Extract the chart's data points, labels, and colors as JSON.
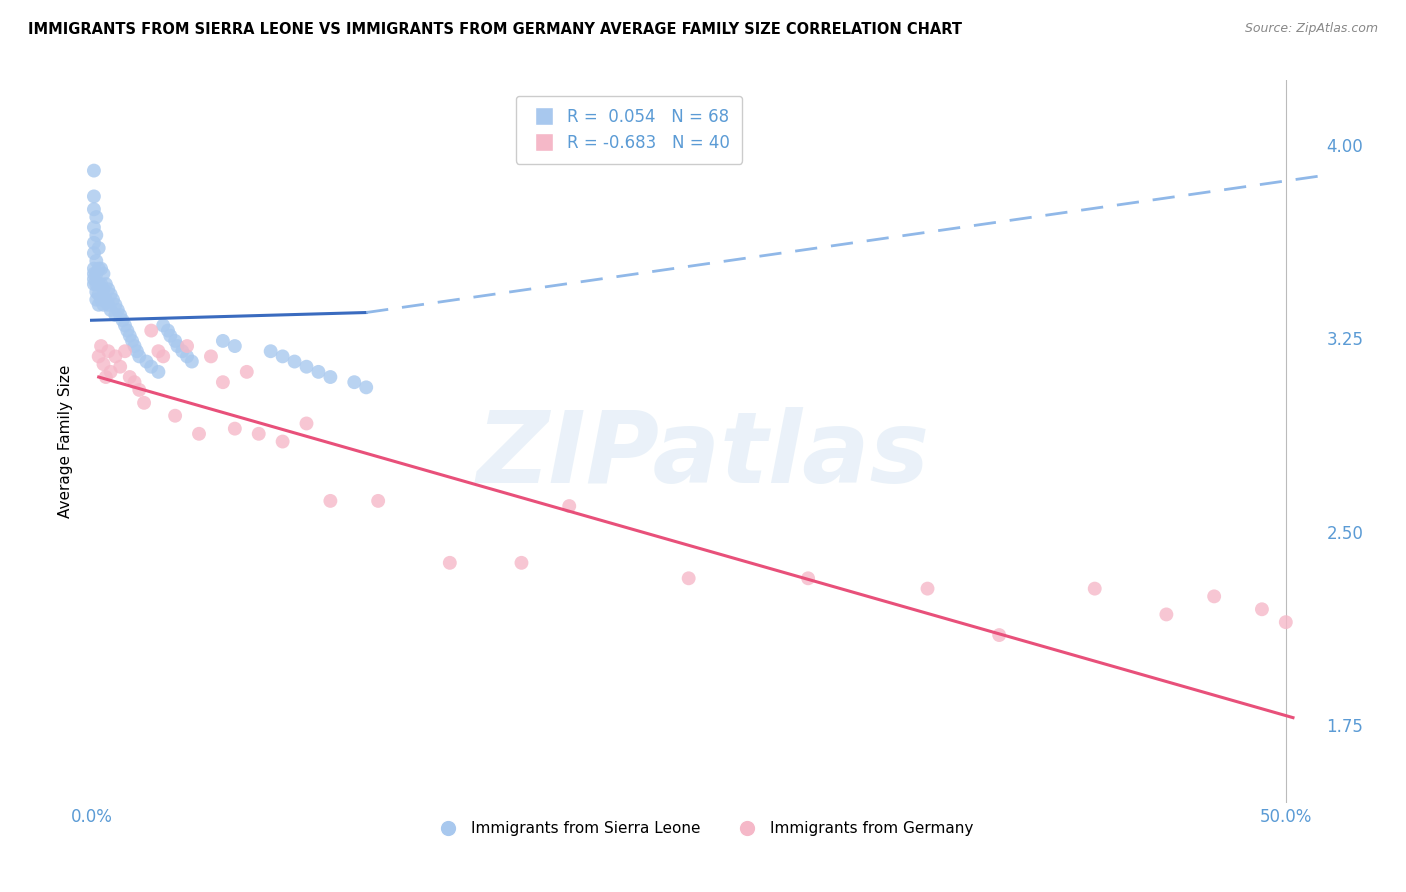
{
  "title": "IMMIGRANTS FROM SIERRA LEONE VS IMMIGRANTS FROM GERMANY AVERAGE FAMILY SIZE CORRELATION CHART",
  "source": "Source: ZipAtlas.com",
  "ylabel": "Average Family Size",
  "yticks": [
    1.75,
    2.5,
    3.25,
    4.0
  ],
  "ymin": 1.45,
  "ymax": 4.25,
  "xmin": -0.003,
  "xmax": 0.515,
  "legend_r_blue": "R =  0.054",
  "legend_n_blue": "N = 68",
  "legend_r_pink": "R = -0.683",
  "legend_n_pink": "N = 40",
  "blue_color": "#A8C8EE",
  "pink_color": "#F5B8C8",
  "trend_blue_solid": "#3A6BBF",
  "trend_blue_dashed": "#90B8E8",
  "trend_pink": "#E8507A",
  "background": "#FFFFFF",
  "grid_color": "#CCCCCC",
  "axis_color": "#5B9BD5",
  "title_fontsize": 10.5,
  "source_fontsize": 9,
  "blue_dots_x": [
    0.001,
    0.001,
    0.001,
    0.001,
    0.001,
    0.001,
    0.001,
    0.001,
    0.001,
    0.001,
    0.002,
    0.002,
    0.002,
    0.002,
    0.002,
    0.002,
    0.002,
    0.003,
    0.003,
    0.003,
    0.003,
    0.003,
    0.004,
    0.004,
    0.004,
    0.005,
    0.005,
    0.005,
    0.006,
    0.006,
    0.007,
    0.007,
    0.008,
    0.008,
    0.009,
    0.01,
    0.01,
    0.011,
    0.012,
    0.013,
    0.014,
    0.015,
    0.016,
    0.017,
    0.018,
    0.019,
    0.02,
    0.023,
    0.025,
    0.028,
    0.03,
    0.032,
    0.033,
    0.035,
    0.036,
    0.038,
    0.04,
    0.042,
    0.055,
    0.06,
    0.075,
    0.08,
    0.085,
    0.09,
    0.095,
    0.1,
    0.11,
    0.115
  ],
  "blue_dots_y": [
    3.9,
    3.8,
    3.75,
    3.68,
    3.62,
    3.58,
    3.52,
    3.5,
    3.48,
    3.46,
    3.72,
    3.65,
    3.55,
    3.5,
    3.46,
    3.43,
    3.4,
    3.6,
    3.52,
    3.46,
    3.42,
    3.38,
    3.52,
    3.46,
    3.4,
    3.5,
    3.44,
    3.38,
    3.46,
    3.4,
    3.44,
    3.38,
    3.42,
    3.36,
    3.4,
    3.38,
    3.34,
    3.36,
    3.34,
    3.32,
    3.3,
    3.28,
    3.26,
    3.24,
    3.22,
    3.2,
    3.18,
    3.16,
    3.14,
    3.12,
    3.3,
    3.28,
    3.26,
    3.24,
    3.22,
    3.2,
    3.18,
    3.16,
    3.24,
    3.22,
    3.2,
    3.18,
    3.16,
    3.14,
    3.12,
    3.1,
    3.08,
    3.06
  ],
  "pink_dots_x": [
    0.003,
    0.004,
    0.005,
    0.006,
    0.007,
    0.008,
    0.01,
    0.012,
    0.014,
    0.016,
    0.018,
    0.02,
    0.022,
    0.025,
    0.028,
    0.03,
    0.035,
    0.04,
    0.045,
    0.05,
    0.055,
    0.06,
    0.065,
    0.07,
    0.08,
    0.09,
    0.1,
    0.12,
    0.15,
    0.18,
    0.2,
    0.25,
    0.3,
    0.35,
    0.38,
    0.42,
    0.45,
    0.47,
    0.49,
    0.5
  ],
  "pink_dots_y": [
    3.18,
    3.22,
    3.15,
    3.1,
    3.2,
    3.12,
    3.18,
    3.14,
    3.2,
    3.1,
    3.08,
    3.05,
    3.0,
    3.28,
    3.2,
    3.18,
    2.95,
    3.22,
    2.88,
    3.18,
    3.08,
    2.9,
    3.12,
    2.88,
    2.85,
    2.92,
    2.62,
    2.62,
    2.38,
    2.38,
    2.6,
    2.32,
    2.32,
    2.28,
    2.1,
    2.28,
    2.18,
    2.25,
    2.2,
    2.15
  ]
}
